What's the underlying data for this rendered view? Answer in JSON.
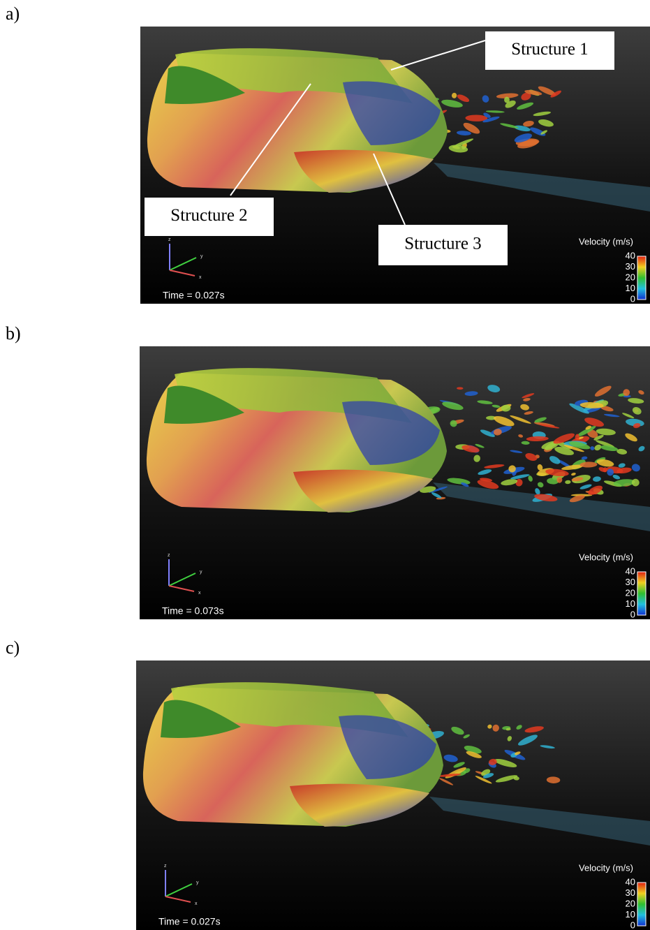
{
  "panels": [
    {
      "label": "a)",
      "time": "Time = 0.027s",
      "colorbar_title": "Velocity (m/s)",
      "colorbar_ticks": [
        40,
        30,
        20,
        10,
        0
      ],
      "axes": [
        "z",
        "y",
        "x"
      ],
      "annotations": [
        "Structure 1",
        "Structure 2",
        "Structure 3"
      ]
    },
    {
      "label": "b)",
      "time": "Time = 0.073s",
      "colorbar_title": "Velocity (m/s)",
      "colorbar_ticks": [
        40,
        30,
        20,
        10,
        0
      ],
      "axes": [
        "z",
        "y",
        "x"
      ]
    },
    {
      "label": "c)",
      "time": "Time = 0.027s",
      "colorbar_title": "Velocity (m/s)",
      "colorbar_ticks": [
        40,
        30,
        20,
        10,
        0
      ],
      "axes": [
        "z",
        "y",
        "x"
      ]
    }
  ]
}
